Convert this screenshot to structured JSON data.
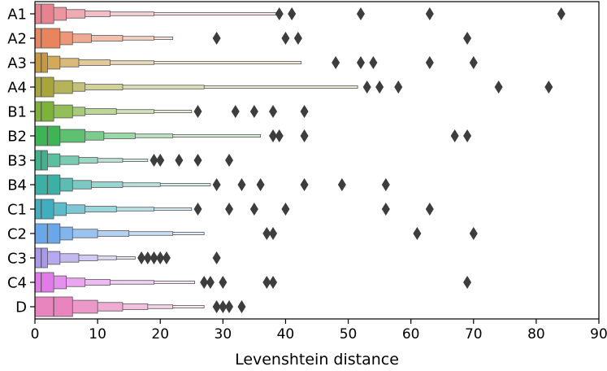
{
  "chart_data": {
    "type": "boxen",
    "orientation": "horizontal",
    "xlabel": "Levenshtein distance",
    "ylabel": "",
    "xlim": [
      0,
      90
    ],
    "xticks": [
      0,
      10,
      20,
      30,
      40,
      50,
      60,
      70,
      80,
      90
    ],
    "grid": false,
    "categories": [
      "A1",
      "A2",
      "A3",
      "A4",
      "B1",
      "B2",
      "B3",
      "B4",
      "C1",
      "C2",
      "C3",
      "C4",
      "D"
    ],
    "series": [
      {
        "category": "A1",
        "color": "#e8828f",
        "median": 1,
        "levels": [
          [
            0,
            3
          ],
          [
            0,
            5
          ],
          [
            0,
            8
          ],
          [
            0,
            12
          ],
          [
            0,
            19
          ],
          [
            0,
            39
          ]
        ],
        "outliers": [
          39,
          41,
          52,
          63,
          84
        ]
      },
      {
        "category": "A2",
        "color": "#e8845e",
        "median": 1,
        "levels": [
          [
            0,
            4
          ],
          [
            0,
            6
          ],
          [
            0,
            9
          ],
          [
            0,
            14
          ],
          [
            0,
            19
          ],
          [
            0,
            22
          ]
        ],
        "outliers": [
          29,
          40,
          42,
          69
        ]
      },
      {
        "category": "A3",
        "color": "#c99a3c",
        "median": 1,
        "levels": [
          [
            0,
            2
          ],
          [
            0,
            4
          ],
          [
            0,
            7
          ],
          [
            0,
            12
          ],
          [
            0,
            19
          ],
          [
            0,
            42.5
          ]
        ],
        "outliers": [
          48,
          52,
          54,
          63,
          70
        ]
      },
      {
        "category": "A4",
        "color": "#a8a63b",
        "median": 1,
        "levels": [
          [
            0,
            3
          ],
          [
            0,
            6
          ],
          [
            0,
            8
          ],
          [
            0,
            14
          ],
          [
            0,
            27
          ],
          [
            0,
            51.5
          ]
        ],
        "outliers": [
          53,
          55,
          58,
          74,
          82
        ]
      },
      {
        "category": "B1",
        "color": "#7db33b",
        "median": 1,
        "levels": [
          [
            0,
            3
          ],
          [
            0,
            6
          ],
          [
            0,
            8
          ],
          [
            0,
            13
          ],
          [
            0,
            19
          ],
          [
            0,
            25
          ]
        ],
        "outliers": [
          26,
          32,
          35,
          38,
          43
        ]
      },
      {
        "category": "B2",
        "color": "#3fb456",
        "median": 2,
        "levels": [
          [
            0,
            4
          ],
          [
            0,
            8
          ],
          [
            0,
            11
          ],
          [
            0,
            16
          ],
          [
            0,
            22
          ],
          [
            0,
            36
          ]
        ],
        "outliers": [
          38,
          39,
          43,
          67,
          69
        ]
      },
      {
        "category": "B3",
        "color": "#3db38e",
        "median": 1,
        "levels": [
          [
            0,
            2
          ],
          [
            0,
            4
          ],
          [
            0,
            7
          ],
          [
            0,
            10
          ],
          [
            0,
            14
          ],
          [
            0,
            18
          ]
        ],
        "outliers": [
          19,
          20,
          23,
          26,
          31
        ]
      },
      {
        "category": "B4",
        "color": "#3db0a5",
        "median": 2,
        "levels": [
          [
            0,
            4
          ],
          [
            0,
            6
          ],
          [
            0,
            9
          ],
          [
            0,
            14
          ],
          [
            0,
            20
          ],
          [
            0,
            28
          ]
        ],
        "outliers": [
          29,
          33,
          36,
          43,
          49,
          56
        ]
      },
      {
        "category": "C1",
        "color": "#3eaec0",
        "median": 1,
        "levels": [
          [
            0,
            3
          ],
          [
            0,
            5
          ],
          [
            0,
            8
          ],
          [
            0,
            13
          ],
          [
            0,
            19
          ],
          [
            0,
            25
          ]
        ],
        "outliers": [
          26,
          31,
          35,
          40,
          56,
          63
        ]
      },
      {
        "category": "C2",
        "color": "#6aa7e8",
        "median": 2,
        "levels": [
          [
            0,
            4
          ],
          [
            0,
            6
          ],
          [
            0,
            10
          ],
          [
            0,
            15
          ],
          [
            0,
            22
          ],
          [
            0,
            27
          ]
        ],
        "outliers": [
          37,
          38,
          61,
          70
        ]
      },
      {
        "category": "C3",
        "color": "#aa98ec",
        "median": 1,
        "levels": [
          [
            0,
            2
          ],
          [
            0,
            4
          ],
          [
            0,
            7
          ],
          [
            0,
            10
          ],
          [
            0,
            13
          ],
          [
            0,
            16
          ]
        ],
        "outliers": [
          17,
          18,
          19,
          20,
          21,
          29
        ]
      },
      {
        "category": "C4",
        "color": "#e17bea",
        "median": 1,
        "levels": [
          [
            0,
            3
          ],
          [
            0,
            5
          ],
          [
            0,
            8
          ],
          [
            0,
            12
          ],
          [
            0,
            19
          ],
          [
            0,
            25.5
          ]
        ],
        "outliers": [
          27,
          28,
          30,
          37,
          38,
          69
        ]
      },
      {
        "category": "D",
        "color": "#e885bf",
        "median": 3,
        "levels": [
          [
            0,
            6
          ],
          [
            0,
            10
          ],
          [
            0,
            14
          ],
          [
            0,
            18
          ],
          [
            0,
            22
          ],
          [
            0,
            27
          ]
        ],
        "outliers": [
          29,
          30,
          31,
          33
        ]
      }
    ]
  }
}
